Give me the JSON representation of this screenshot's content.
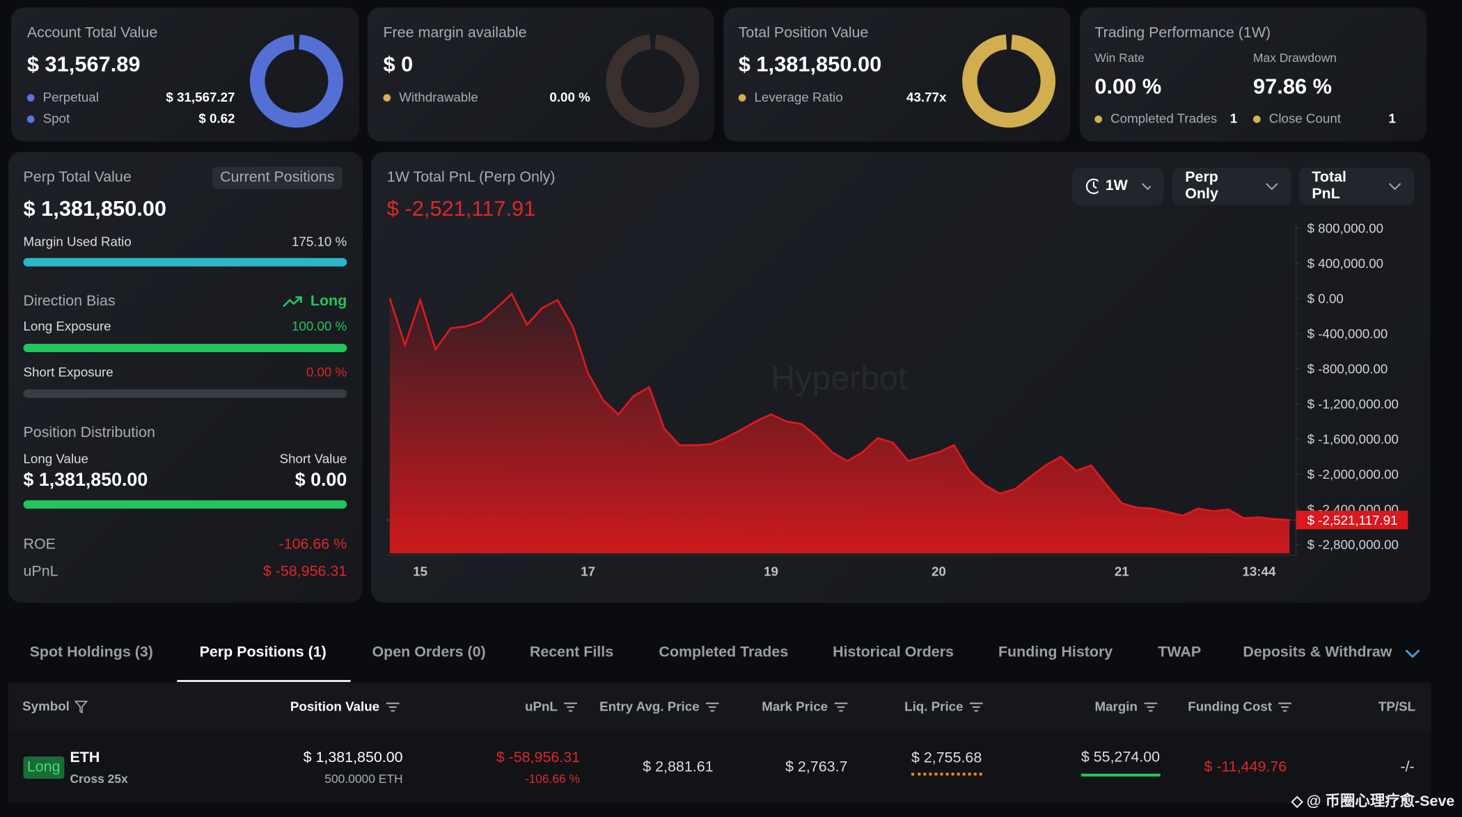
{
  "summary": [
    {
      "title": "Account Total Value",
      "value": "$ 31,567.89",
      "items": [
        {
          "label": "Perpetual",
          "value": "$ 31,567.27"
        },
        {
          "label": "Spot",
          "value": "$ 0.62"
        }
      ]
    },
    {
      "title": "Free margin available",
      "value": "$ 0",
      "items": [
        {
          "label": "Withdrawable",
          "value": "0.00 %"
        }
      ]
    },
    {
      "title": "Total Position Value",
      "value": "$ 1,381,850.00",
      "items": [
        {
          "label": "Leverage Ratio",
          "value": "43.77x"
        }
      ]
    }
  ],
  "performance": {
    "title": "Trading Performance (1W)",
    "win_rate_label": "Win Rate",
    "win_rate": "0.00 %",
    "max_drawdown_label": "Max Drawdown",
    "max_drawdown": "97.86 %",
    "completed_trades_label": "Completed Trades",
    "completed_trades": "1",
    "close_count_label": "Close Count",
    "close_count": "1"
  },
  "perp": {
    "title": "Perp Total Value",
    "badge": "Current Positions",
    "value": "$ 1,381,850.00",
    "margin_label": "Margin Used Ratio",
    "margin_value": "175.10 %",
    "bias_label": "Direction Bias",
    "bias_value": "Long",
    "long_label": "Long Exposure",
    "long_value": "100.00 %",
    "short_label": "Short Exposure",
    "short_value": "0.00 %",
    "dist_label": "Position Distribution",
    "long_value_label": "Long Value",
    "short_value_label": "Short Value",
    "long_amount": "$ 1,381,850.00",
    "short_amount": "$ 0.00",
    "roe_label": "ROE",
    "roe_value": "-106.66 %",
    "upnl_label": "uPnL",
    "upnl_value": "$ -58,956.31"
  },
  "chart_data": {
    "type": "line",
    "title": "1W Total PnL (Perp Only)",
    "current_label": "$ -2,521,117.91",
    "controls": [
      "1W",
      "Perp Only",
      "Total PnL"
    ],
    "watermark": "Hyperbot",
    "color": "#e0191e",
    "categories": [
      null,
      null,
      "15",
      null,
      null,
      null,
      null,
      null,
      null,
      null,
      null,
      null,
      null,
      "17",
      null,
      null,
      null,
      null,
      null,
      null,
      null,
      null,
      null,
      null,
      null,
      "19",
      null,
      null,
      null,
      null,
      null,
      null,
      null,
      null,
      null,
      null,
      "20",
      null,
      null,
      null,
      null,
      null,
      null,
      null,
      null,
      null,
      null,
      null,
      "21",
      null,
      null,
      null,
      null,
      null,
      null,
      null,
      null,
      "13:44",
      null,
      null
    ],
    "values": [
      0,
      -530000,
      -20000,
      -580000,
      -340000,
      -320000,
      -260000,
      -110000,
      50000,
      -300000,
      -110000,
      -20000,
      -320000,
      -850000,
      -1160000,
      -1320000,
      -1110000,
      -1010000,
      -1480000,
      -1670000,
      -1670000,
      -1660000,
      -1590000,
      -1500000,
      -1400000,
      -1320000,
      -1400000,
      -1430000,
      -1570000,
      -1750000,
      -1850000,
      -1750000,
      -1590000,
      -1640000,
      -1850000,
      -1800000,
      -1750000,
      -1670000,
      -1960000,
      -2120000,
      -2220000,
      -2170000,
      -2030000,
      -1900000,
      -1800000,
      -1960000,
      -1900000,
      -2120000,
      -2330000,
      -2380000,
      -2390000,
      -2430000,
      -2470000,
      -2390000,
      -2420000,
      -2400000,
      -2500000,
      -2490000,
      -2510000,
      -2521117.91
    ],
    "ylim": [
      -2900000,
      850000
    ],
    "yticks": [
      {
        "value": 800000,
        "label": "$ 800,000.00"
      },
      {
        "value": 400000,
        "label": "$ 400,000.00"
      },
      {
        "value": 0,
        "label": "$ 0.00"
      },
      {
        "value": -400000,
        "label": "$ -400,000.00"
      },
      {
        "value": -800000,
        "label": "$ -800,000.00"
      },
      {
        "value": -1200000,
        "label": "$ -1,200,000.00"
      },
      {
        "value": -1600000,
        "label": "$ -1,600,000.00"
      },
      {
        "value": -2000000,
        "label": "$ -2,000,000.00"
      },
      {
        "value": -2400000,
        "label": "$ -2,400,000.00"
      },
      {
        "value": -2800000,
        "label": "$ -2,800,000.00"
      }
    ]
  },
  "tabs": [
    "Spot Holdings (3)",
    "Perp Positions (1)",
    "Open Orders (0)",
    "Recent Fills",
    "Completed Trades",
    "Historical Orders",
    "Funding History",
    "TWAP",
    "Deposits & Withdraw"
  ],
  "table": {
    "columns": [
      "Symbol",
      "Position Value",
      "uPnL",
      "Entry Avg. Price",
      "Mark Price",
      "Liq. Price",
      "Margin",
      "Funding Cost",
      "TP/SL"
    ],
    "rows": [
      {
        "side": "Long",
        "symbol": "ETH",
        "mode": "Cross 25x",
        "position_value": "$ 1,381,850.00",
        "size": "500.0000 ETH",
        "upnl": "$ -58,956.31",
        "upnl_pct": "-106.66 %",
        "entry": "$ 2,881.61",
        "mark": "$ 2,763.7",
        "liq": "$ 2,755.68",
        "margin": "$ 55,274.00",
        "funding": "$ -11,449.76",
        "tpsl": "-/-"
      }
    ]
  },
  "watermark": "@ 币圈心理疗愈-Seve"
}
